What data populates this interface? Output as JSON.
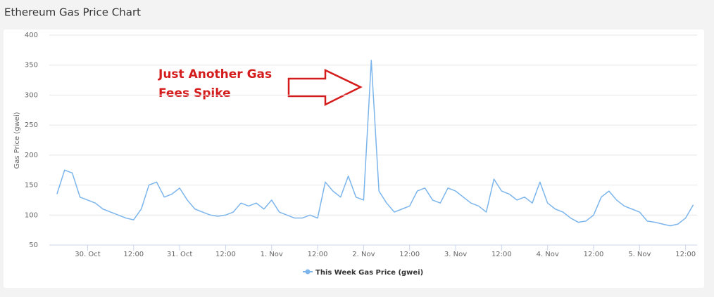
{
  "chart_data": {
    "type": "line",
    "page_title": "Ethereum Gas Price Chart",
    "ylabel": "Gas Price (gwei)",
    "annotation": [
      "Just Another Gas",
      "Fees Spike"
    ],
    "x": [
      -8,
      -6,
      -4,
      -2,
      0,
      2,
      4,
      6,
      8,
      10,
      12,
      14,
      16,
      18,
      20,
      22,
      24,
      26,
      28,
      30,
      32,
      34,
      36,
      38,
      40,
      42,
      44,
      46,
      48,
      50,
      52,
      54,
      56,
      58,
      60,
      62,
      64,
      66,
      68,
      70,
      72,
      74,
      76,
      78,
      80,
      82,
      84,
      86,
      88,
      90,
      92,
      94,
      96,
      98,
      100,
      102,
      104,
      106,
      108,
      110,
      112,
      114,
      116,
      118,
      120,
      122,
      124,
      126,
      128,
      130,
      132,
      134,
      136,
      138,
      140,
      142,
      144,
      146,
      148,
      150,
      152,
      154,
      156,
      158
    ],
    "series": [
      {
        "name": "This Week Gas Price (gwei)",
        "color": "#7cb5ec",
        "values": [
          135,
          175,
          170,
          130,
          125,
          120,
          110,
          105,
          100,
          95,
          92,
          110,
          150,
          155,
          130,
          135,
          145,
          125,
          110,
          105,
          100,
          98,
          100,
          105,
          120,
          115,
          120,
          110,
          125,
          105,
          100,
          95,
          95,
          100,
          95,
          155,
          140,
          130,
          165,
          130,
          125,
          358,
          140,
          120,
          105,
          110,
          115,
          140,
          145,
          125,
          120,
          145,
          140,
          130,
          120,
          115,
          105,
          160,
          140,
          135,
          125,
          130,
          120,
          155,
          120,
          110,
          105,
          95,
          88,
          90,
          100,
          130,
          140,
          125,
          115,
          110,
          105,
          90,
          88,
          85,
          82,
          85,
          95,
          117
        ]
      }
    ],
    "xlim": [
      -10,
      159
    ],
    "xticks": [
      {
        "value": 0,
        "label": "30. Oct"
      },
      {
        "value": 12,
        "label": "12:00"
      },
      {
        "value": 24,
        "label": "31. Oct"
      },
      {
        "value": 36,
        "label": "12:00"
      },
      {
        "value": 48,
        "label": "1. Nov"
      },
      {
        "value": 60,
        "label": "12:00"
      },
      {
        "value": 72,
        "label": "2. Nov"
      },
      {
        "value": 84,
        "label": "12:00"
      },
      {
        "value": 96,
        "label": "3. Nov"
      },
      {
        "value": 108,
        "label": "12:00"
      },
      {
        "value": 120,
        "label": "4. Nov"
      },
      {
        "value": 132,
        "label": "12:00"
      },
      {
        "value": 144,
        "label": "5. Nov"
      },
      {
        "value": 156,
        "label": "12:00"
      }
    ],
    "ylim": [
      50,
      400
    ],
    "yticks": [
      50,
      100,
      150,
      200,
      250,
      300,
      350,
      400
    ],
    "grid": true
  }
}
